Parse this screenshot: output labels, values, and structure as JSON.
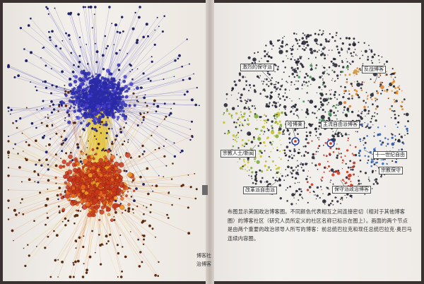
{
  "image": {
    "left_page": {
      "edge_text_lines": [
        "博客社",
        "治博客"
      ]
    },
    "right_page": {
      "labels": [
        "激烈的保守派",
        "反战博客",
        "哈博莱",
        "主流自由派博客",
        "宗教人士/新闻",
        "十一世纪自由",
        "宗教保守",
        "改革派自由派",
        "保守派政治博客"
      ],
      "caption": "布图显示美国政治博客圈。不同颜色代表相互之间连接密切（相对于其他博客圈）的博客社区（研究人员所定义的社区名称已标示在图上）。画面的两个节点是由两个重要的政治领导人所写的博客：前总统巴拉克和现任总统巴拉克·奥巴马连续内容圈。"
    },
    "colors": {
      "blue_cluster": "#2a2aa8",
      "red_cluster": "#c8381c",
      "yellow_edges": "#e8c838",
      "green_nodes": "#7aa830",
      "orange_nodes": "#e07820",
      "blue_nodes": "#2a60c0"
    }
  }
}
